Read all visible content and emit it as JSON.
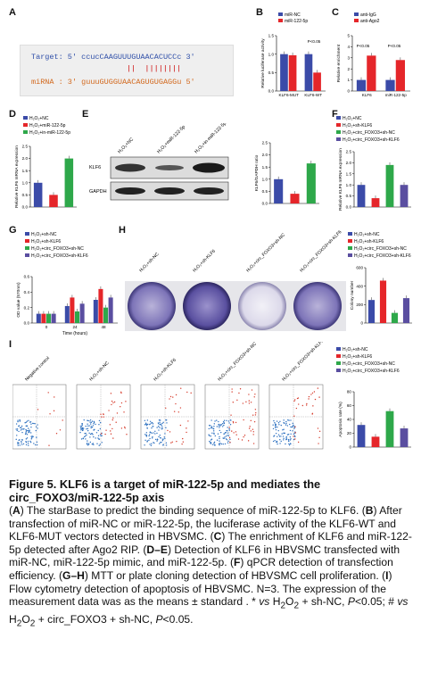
{
  "panels": {
    "A": {
      "label": "A",
      "target_prefix": "Target: 5'",
      "target_seq": "ccucCAAGUUUGUAACACUCCc",
      "target_suffix": "3'",
      "match_marks": "||  ||||||||",
      "mirna_prefix": "miRNA : 3'",
      "mirna_seq": "guuuGUGGUAACAGUGUGAGGu",
      "mirna_suffix": "5'"
    },
    "B": {
      "label": "B",
      "legend": [
        "miR-NC",
        "miR-122-5p"
      ],
      "ylabel": "Relative luciferase activity",
      "pval": "P<0.05"
    },
    "C": {
      "label": "C",
      "legend": [
        "anti-IgG",
        "anti-Ago2"
      ],
      "ylabel": "Relative enrichment",
      "pvals": [
        "P<0.05",
        "P<0.05"
      ]
    },
    "D": {
      "label": "D",
      "legend": [
        "H₂O₂+NC",
        "H₂O₂+miR-122-5p",
        "H₂O₂+in-miR-122-5p"
      ],
      "ylabel": "Relative KLF6 mRNA expression"
    },
    "E": {
      "label": "E",
      "lanes": [
        "H₂O₂+NC",
        "H₂O₂+miR-122-5p",
        "H₂O₂+in-miR-122-5p"
      ],
      "bands": [
        "KLF6",
        "GAPDH"
      ],
      "ylabel": "KLF6/GAPDH ratio"
    },
    "F": {
      "label": "F",
      "legend": [
        "H₂O₂+NC",
        "H₂O₂+sh-KLF6",
        "H₂O₂+circ_FOXO3+sh-NC",
        "H₂O₂+circ_FOXO3+sh-KLF6"
      ],
      "ylabel": "Relative KLF6 mRNA expression"
    },
    "G": {
      "label": "G",
      "legend": [
        "H₂O₂+sh-NC",
        "H₂O₂+sh-KLF6",
        "H₂O₂+circ_FOXO3+sh-NC",
        "H₂O₂+circ_FOXO3+sh-KLF6"
      ],
      "ylabel": "OD value (570nm)",
      "xlabel": "Time (hours)",
      "xticks": [
        "0",
        "24",
        "48"
      ]
    },
    "H": {
      "label": "H",
      "plates": [
        "H₂O₂+sh-NC",
        "H₂O₂+sh-KLF6",
        "H₂O₂+circ_FOXO3+sh-NC",
        "H₂O₂+circ_FOXO3+sh-KLF6"
      ],
      "legend": [
        "H₂O₂+sh-NC",
        "H₂O₂+sh-KLF6",
        "H₂O₂+circ_FOXO3+sh-NC",
        "H₂O₂+circ_FOXO3+sh-KLF6"
      ],
      "ylabel": "Colony number"
    },
    "I": {
      "label": "I",
      "plots": [
        "Negative control",
        "H₂O₂+sh-NC",
        "H₂O₂+sh-KLF6",
        "H₂O₂+circ_FOXO3+sh-NC",
        "H₂O₂+circ_FOXO3+sh-KLF6"
      ],
      "legend": [
        "H₂O₂+sh-NC",
        "H₂O₂+sh-KLF6",
        "H₂O₂+circ_FOXO3+sh-NC",
        "H₂O₂+circ_FOXO3+sh-KLF6"
      ],
      "ylabel": "Apoptosis rate (%)"
    }
  },
  "colors": {
    "blue": "#3b4ba8",
    "red": "#e5262a",
    "green": "#2ea84a",
    "purple": "#5a4ea0"
  },
  "chart_data": [
    {
      "panel": "B",
      "type": "bar",
      "categories": [
        "KLF6-MUT",
        "KLF6-WT"
      ],
      "series": [
        {
          "name": "miR-NC",
          "values": [
            1.0,
            1.0
          ]
        },
        {
          "name": "miR-122-5p",
          "values": [
            0.97,
            0.5
          ]
        }
      ],
      "ylabel": "Relative luciferase activity",
      "ylim": [
        0,
        1.5
      ],
      "yticks": [
        "0.0",
        "0.5",
        "1.0",
        "1.5"
      ]
    },
    {
      "panel": "C",
      "type": "bar",
      "categories": [
        "KLF6",
        "miR-122-5p"
      ],
      "series": [
        {
          "name": "anti-IgG",
          "values": [
            1.0,
            1.0
          ]
        },
        {
          "name": "anti-Ago2",
          "values": [
            3.2,
            2.8
          ]
        }
      ],
      "ylabel": "Relative enrichment",
      "ylim": [
        0,
        5
      ],
      "yticks": [
        "0",
        "1",
        "2",
        "3",
        "4",
        "5"
      ]
    },
    {
      "panel": "D",
      "type": "bar",
      "categories": [
        "H₂O₂+NC",
        "H₂O₂+miR-122-5p",
        "H₂O₂+in-miR-122-5p"
      ],
      "values": [
        1.0,
        0.5,
        2.0
      ],
      "ylabel": "Relative KLF6 mRNA expression",
      "ylim": [
        0,
        2.5
      ],
      "yticks": [
        "0.0",
        "0.5",
        "1.0",
        "1.5",
        "2.0",
        "2.5"
      ]
    },
    {
      "panel": "E",
      "type": "bar",
      "categories": [
        "H₂O₂+NC",
        "H₂O₂+miR-122-5p",
        "H₂O₂+in-miR-122-5p"
      ],
      "values": [
        1.0,
        0.4,
        1.65
      ],
      "ylabel": "KLF6/GAPDH ratio",
      "ylim": [
        0,
        2.5
      ],
      "yticks": [
        "0.0",
        "0.5",
        "1.0",
        "1.5",
        "2.0",
        "2.5"
      ]
    },
    {
      "panel": "F",
      "type": "bar",
      "categories": [
        "H₂O₂+NC",
        "H₂O₂+sh-KLF6",
        "H₂O₂+circ_FOXO3+sh-NC",
        "H₂O₂+circ_FOXO3+sh-KLF6"
      ],
      "values": [
        1.0,
        0.4,
        1.9,
        1.0
      ],
      "ylabel": "Relative KLF6 mRNA expression",
      "ylim": [
        0,
        2.5
      ],
      "yticks": [
        "0.0",
        "0.5",
        "1.0",
        "1.5",
        "2.0",
        "2.5"
      ]
    },
    {
      "panel": "G",
      "type": "bar",
      "categories": [
        "0",
        "24",
        "48"
      ],
      "series": [
        {
          "name": "H₂O₂+sh-NC",
          "values": [
            0.12,
            0.22,
            0.3
          ]
        },
        {
          "name": "H₂O₂+sh-KLF6",
          "values": [
            0.12,
            0.33,
            0.44
          ]
        },
        {
          "name": "H₂O₂+circ_FOXO3+sh-NC",
          "values": [
            0.12,
            0.15,
            0.2
          ]
        },
        {
          "name": "H₂O₂+circ_FOXO3+sh-KLF6",
          "values": [
            0.12,
            0.25,
            0.33
          ]
        }
      ],
      "ylabel": "OD value (570nm)",
      "xlabel": "Time (hours)",
      "ylim": [
        0,
        0.6
      ],
      "yticks": [
        "0.0",
        "0.2",
        "0.4",
        "0.6"
      ]
    },
    {
      "panel": "H",
      "type": "bar",
      "categories": [
        "H₂O₂+sh-NC",
        "H₂O₂+sh-KLF6",
        "H₂O₂+circ_FOXO3+sh-NC",
        "H₂O₂+circ_FOXO3+sh-KLF6"
      ],
      "values": [
        250,
        460,
        110,
        270
      ],
      "ylabel": "Colony number",
      "ylim": [
        0,
        600
      ],
      "yticks": [
        "0",
        "200",
        "400",
        "600"
      ]
    },
    {
      "panel": "I",
      "type": "bar",
      "categories": [
        "H₂O₂+sh-NC",
        "H₂O₂+sh-KLF6",
        "H₂O₂+circ_FOXO3+sh-NC",
        "H₂O₂+circ_FOXO3+sh-KLF6"
      ],
      "values": [
        32,
        15,
        52,
        27
      ],
      "ylabel": "Apoptosis rate (%)",
      "ylim": [
        0,
        80
      ],
      "yticks": [
        "0",
        "20",
        "40",
        "60",
        "80"
      ]
    }
  ],
  "caption": {
    "title": "Figure 5. KLF6 is a target of miR-122-5p and mediates the circ_FOXO3/miR-122-5p axis",
    "body_html": "(<b>A</b>) The starBase to predict the binding sequence of miR-122-5p to KLF6. (<b>B</b>) After transfection of miR-NC or miR-122-5p, the luciferase activity of the KLF6-WT and KLF6-MUT vectors detected in HBVSMC. (<b>C</b>) The enrichment of KLF6 and miR-122-5p detected after Ago2 RIP. (<b>D–E</b>) Detection of KLF6 in HBVSMC transfected with miR-NC, miR-122-5p mimic, and miR-122-5p. (<b>F</b>) qPCR detection of transfection efficiency. (<b>G–H</b>) MTT or plate cloning detection of HBVSMC cell proliferation. (<b>I</b>) Flow cytometry detection of apoptosis of HBVSMC. N=3. The expression of the measurement data was as the means ± standard . * <i>vs</i> H<sub>2</sub>O<sub>2</sub> + sh-NC, <i>P</i>&lt;0.05; # <i>vs</i> H<sub>2</sub>O<sub>2</sub> + circ_FOXO3 + sh-NC, <i>P</i>&lt;0.05."
  }
}
